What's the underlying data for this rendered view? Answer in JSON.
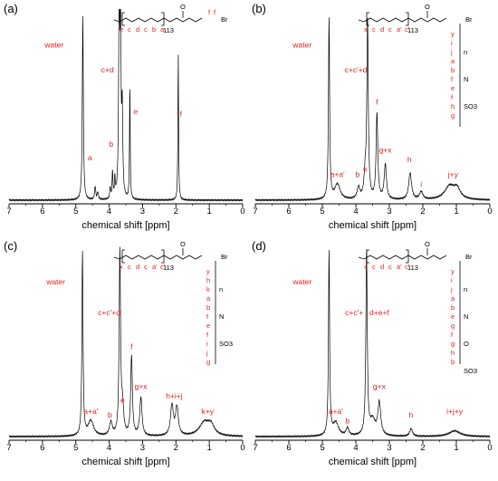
{
  "figure": {
    "xlabel": "chemical shift [ppm]",
    "xticks": [
      "7",
      "6",
      "5",
      "4",
      "3",
      "2",
      "1",
      "0"
    ]
  },
  "chart_data": [
    {
      "type": "line",
      "panel": "(a)",
      "xlabel": "chemical shift [ppm]",
      "xlim": [
        7,
        0
      ],
      "xticks": [
        7,
        6,
        5,
        4,
        3,
        2,
        1,
        0
      ],
      "peaks": [
        {
          "ppm": 4.79,
          "height": 0.97,
          "width": 0.018
        },
        {
          "ppm": 4.42,
          "height": 0.07,
          "width": 0.02
        },
        {
          "ppm": 4.34,
          "height": 0.04,
          "width": 0.02
        },
        {
          "ppm": 3.97,
          "height": 0.06,
          "width": 0.015
        },
        {
          "ppm": 3.9,
          "height": 0.14,
          "width": 0.015
        },
        {
          "ppm": 3.83,
          "height": 0.1,
          "width": 0.015
        },
        {
          "ppm": 3.7,
          "height": 0.99,
          "width": 0.02
        },
        {
          "ppm": 3.66,
          "height": 0.99,
          "width": 0.015
        },
        {
          "ppm": 3.61,
          "height": 0.45,
          "width": 0.02
        },
        {
          "ppm": 3.38,
          "height": 0.61,
          "width": 0.012
        },
        {
          "ppm": 1.93,
          "height": 0.77,
          "width": 0.012
        }
      ],
      "peak_labels": [
        {
          "text": "water",
          "ppm": 5.65,
          "level": 0.8
        },
        {
          "text": "c+d",
          "ppm": 4.05,
          "level": 0.67
        },
        {
          "text": "a",
          "ppm": 4.58,
          "level": 0.21
        },
        {
          "text": "b",
          "ppm": 3.94,
          "level": 0.28
        },
        {
          "text": "e",
          "ppm": 3.21,
          "level": 0.45
        },
        {
          "text": "f",
          "ppm": 1.85,
          "level": 0.44
        }
      ],
      "structure": {
        "labels": [
          "e",
          "c",
          "d",
          "c",
          "b",
          "a",
          "f",
          "f"
        ],
        "repeat": "113",
        "end_group": "Br"
      }
    },
    {
      "type": "line",
      "panel": "(b)",
      "xlabel": "chemical shift [ppm]",
      "xlim": [
        7,
        0
      ],
      "xticks": [
        7,
        6,
        5,
        4,
        3,
        2,
        1,
        0
      ],
      "peaks": [
        {
          "ppm": 4.8,
          "height": 0.95,
          "width": 0.02
        },
        {
          "ppm": 4.55,
          "height": 0.08,
          "width": 0.1
        },
        {
          "ppm": 3.92,
          "height": 0.06,
          "width": 0.05
        },
        {
          "ppm": 3.65,
          "height": 0.92,
          "width": 0.025
        },
        {
          "ppm": 3.72,
          "height": 0.12,
          "width": 0.04
        },
        {
          "ppm": 3.37,
          "height": 0.45,
          "width": 0.03
        },
        {
          "ppm": 3.12,
          "height": 0.18,
          "width": 0.04
        },
        {
          "ppm": 2.38,
          "height": 0.14,
          "width": 0.05
        },
        {
          "ppm": 2.05,
          "height": 0.04,
          "width": 0.06
        },
        {
          "ppm": 1.2,
          "height": 0.07,
          "width": 0.18
        },
        {
          "ppm": 0.98,
          "height": 0.05,
          "width": 0.12
        }
      ],
      "peak_labels": [
        {
          "text": "water",
          "ppm": 5.6,
          "level": 0.8
        },
        {
          "text": "c+c'+d",
          "ppm": 4.0,
          "level": 0.67
        },
        {
          "text": "f",
          "ppm": 3.37,
          "level": 0.5
        },
        {
          "text": "g+x",
          "ppm": 3.12,
          "level": 0.25
        },
        {
          "text": "h",
          "ppm": 2.4,
          "level": 0.2
        },
        {
          "text": "a+a'",
          "ppm": 4.55,
          "level": 0.12
        },
        {
          "text": "b",
          "ppm": 3.95,
          "level": 0.12
        },
        {
          "text": "e",
          "ppm": 3.72,
          "level": 0.15
        },
        {
          "text": "i",
          "ppm": 2.05,
          "level": 0.07
        },
        {
          "text": "j+y",
          "ppm": 1.1,
          "level": 0.12
        }
      ],
      "structure": {
        "labels": [
          "x",
          "c",
          "d",
          "c",
          "a'",
          "c'",
          "y",
          "i",
          "j",
          "a",
          "b",
          "f",
          "e",
          "f",
          "h",
          "g"
        ],
        "repeat": "113",
        "end_group": "Br",
        "groups": [
          "n",
          "N",
          "SO3"
        ]
      }
    },
    {
      "type": "line",
      "panel": "(c)",
      "xlabel": "chemical shift [ppm]",
      "xlim": [
        7,
        0
      ],
      "xticks": [
        7,
        6,
        5,
        4,
        3,
        2,
        1,
        0
      ],
      "peaks": [
        {
          "ppm": 4.8,
          "height": 0.97,
          "width": 0.02
        },
        {
          "ppm": 4.55,
          "height": 0.08,
          "width": 0.1
        },
        {
          "ppm": 3.95,
          "height": 0.07,
          "width": 0.05
        },
        {
          "ppm": 3.68,
          "height": 0.96,
          "width": 0.025
        },
        {
          "ppm": 3.6,
          "height": 0.14,
          "width": 0.04
        },
        {
          "ppm": 3.33,
          "height": 0.42,
          "width": 0.03
        },
        {
          "ppm": 3.05,
          "height": 0.2,
          "width": 0.04
        },
        {
          "ppm": 2.12,
          "height": 0.16,
          "width": 0.05
        },
        {
          "ppm": 1.97,
          "height": 0.15,
          "width": 0.05
        },
        {
          "ppm": 1.15,
          "height": 0.07,
          "width": 0.18
        },
        {
          "ppm": 0.95,
          "height": 0.05,
          "width": 0.12
        }
      ],
      "peak_labels": [
        {
          "text": "water",
          "ppm": 5.6,
          "level": 0.8
        },
        {
          "text": "c+c'+d",
          "ppm": 4.0,
          "level": 0.64
        },
        {
          "text": "f",
          "ppm": 3.33,
          "level": 0.46
        },
        {
          "text": "g+x",
          "ppm": 3.05,
          "level": 0.25
        },
        {
          "text": "h+i+j",
          "ppm": 2.05,
          "level": 0.2
        },
        {
          "text": "a+a'",
          "ppm": 4.55,
          "level": 0.12
        },
        {
          "text": "b",
          "ppm": 3.98,
          "level": 0.1
        },
        {
          "text": "e",
          "ppm": 3.6,
          "level": 0.18
        },
        {
          "text": "k+y",
          "ppm": 1.05,
          "level": 0.12
        }
      ],
      "structure": {
        "labels": [
          "x",
          "c",
          "d",
          "c",
          "a'",
          "c'",
          "y",
          "h",
          "k",
          "a",
          "b",
          "f",
          "e",
          "f",
          "i",
          "j",
          "g"
        ],
        "repeat": "113",
        "end_group": "Br",
        "groups": [
          "n",
          "N",
          "SO3"
        ]
      }
    },
    {
      "type": "line",
      "panel": "(d)",
      "xlabel": "chemical shift [ppm]",
      "xlim": [
        7,
        0
      ],
      "xticks": [
        7,
        6,
        5,
        4,
        3,
        2,
        1,
        0
      ],
      "peaks": [
        {
          "ppm": 4.8,
          "height": 0.97,
          "width": 0.02
        },
        {
          "ppm": 4.6,
          "height": 0.07,
          "width": 0.1
        },
        {
          "ppm": 4.25,
          "height": 0.04,
          "width": 0.05
        },
        {
          "ppm": 3.68,
          "height": 0.96,
          "width": 0.025
        },
        {
          "ppm": 3.3,
          "height": 0.17,
          "width": 0.05
        },
        {
          "ppm": 3.5,
          "height": 0.08,
          "width": 0.1
        },
        {
          "ppm": 2.35,
          "height": 0.04,
          "width": 0.05
        },
        {
          "ppm": 1.05,
          "height": 0.03,
          "width": 0.2
        }
      ],
      "peak_labels": [
        {
          "text": "water",
          "ppm": 5.6,
          "level": 0.8
        },
        {
          "text": "c+c'+",
          "ppm": 4.05,
          "level": 0.64
        },
        {
          "text": "d+e+f",
          "ppm": 3.3,
          "level": 0.64
        },
        {
          "text": "g+x",
          "ppm": 3.3,
          "level": 0.25
        },
        {
          "text": "a+a'",
          "ppm": 4.6,
          "level": 0.12
        },
        {
          "text": "b",
          "ppm": 4.25,
          "level": 0.07
        },
        {
          "text": "h",
          "ppm": 2.35,
          "level": 0.1
        },
        {
          "text": "i+j+y",
          "ppm": 1.05,
          "level": 0.12
        }
      ],
      "structure": {
        "labels": [
          "x",
          "c",
          "d",
          "c",
          "a'",
          "c'",
          "y",
          "i",
          "j",
          "a",
          "b",
          "e",
          "g",
          "f",
          "g",
          "h",
          "b"
        ],
        "repeat": "113",
        "end_group": "Br",
        "groups": [
          "n",
          "N",
          "O",
          "SO3"
        ]
      }
    }
  ]
}
